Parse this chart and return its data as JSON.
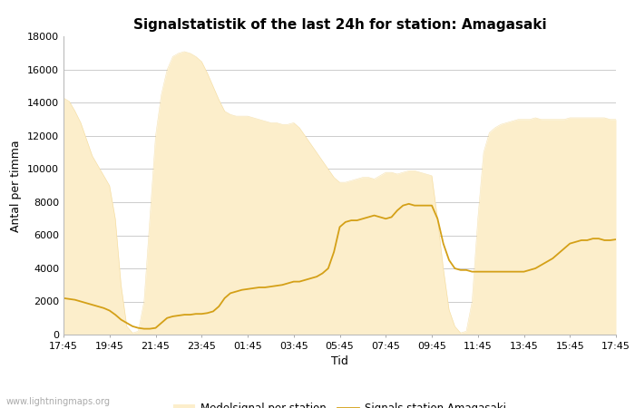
{
  "title": "Signalstatistik of the last 24h for station: Amagasaki",
  "xlabel": "Tid",
  "ylabel": "Antal per timma",
  "watermark": "www.lightningmaps.org",
  "x_labels": [
    "17:45",
    "19:45",
    "21:45",
    "23:45",
    "01:45",
    "03:45",
    "05:45",
    "07:45",
    "09:45",
    "11:45",
    "13:45",
    "15:45",
    "17:45"
  ],
  "ylim": [
    0,
    18000
  ],
  "yticks": [
    0,
    2000,
    4000,
    6000,
    8000,
    10000,
    12000,
    14000,
    16000,
    18000
  ],
  "fill_color": "#fceecb",
  "fill_edge_color": "#f0d080",
  "line_color": "#d4a017",
  "legend_fill_label": "Medelsignal per station",
  "legend_line_label": "Signals station Amagasaki",
  "background_color": "#ffffff",
  "grid_color": "#cccccc",
  "title_fontsize": 11,
  "axis_fontsize": 9,
  "tick_fontsize": 8,
  "fill_values": [
    14300,
    14100,
    13500,
    12800,
    11800,
    10800,
    10200,
    9600,
    9000,
    7000,
    3000,
    500,
    100,
    200,
    2000,
    7000,
    12000,
    14500,
    16000,
    16800,
    17000,
    17100,
    17000,
    16800,
    16500,
    15800,
    15000,
    14200,
    13500,
    13300,
    13200,
    13200,
    13200,
    13100,
    13000,
    12900,
    12800,
    12800,
    12700,
    12700,
    12800,
    12500,
    12000,
    11500,
    11000,
    10500,
    10000,
    9500,
    9200,
    9200,
    9300,
    9400,
    9500,
    9500,
    9400,
    9600,
    9800,
    9800,
    9700,
    9800,
    9900,
    9900,
    9800,
    9700,
    9600,
    7000,
    4000,
    1500,
    500,
    100,
    200,
    2000,
    7000,
    11000,
    12200,
    12500,
    12700,
    12800,
    12900,
    13000,
    13000,
    13000,
    13100,
    13000,
    13000,
    13000,
    13000,
    13000,
    13100,
    13100,
    13100,
    13100,
    13100,
    13100,
    13100,
    13000,
    13000
  ],
  "line_values": [
    2200,
    2150,
    2100,
    2000,
    1900,
    1800,
    1700,
    1600,
    1450,
    1200,
    900,
    700,
    500,
    400,
    350,
    350,
    400,
    700,
    1000,
    1100,
    1150,
    1200,
    1200,
    1250,
    1250,
    1300,
    1400,
    1700,
    2200,
    2500,
    2600,
    2700,
    2750,
    2800,
    2850,
    2850,
    2900,
    2950,
    3000,
    3100,
    3200,
    3200,
    3300,
    3400,
    3500,
    3700,
    4000,
    5000,
    6500,
    6800,
    6900,
    6900,
    7000,
    7100,
    7200,
    7100,
    7000,
    7100,
    7500,
    7800,
    7900,
    7800,
    7800,
    7800,
    7800,
    7000,
    5500,
    4500,
    4000,
    3900,
    3900,
    3800,
    3800,
    3800,
    3800,
    3800,
    3800,
    3800,
    3800,
    3800,
    3800,
    3900,
    4000,
    4200,
    4400,
    4600,
    4900,
    5200,
    5500,
    5600,
    5700,
    5700,
    5800,
    5800,
    5700,
    5700,
    5750
  ]
}
